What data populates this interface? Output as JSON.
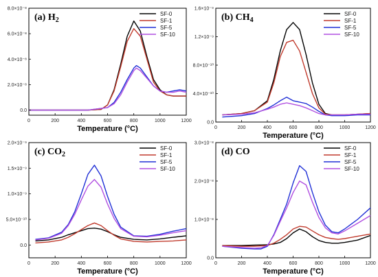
{
  "chart_data": [
    {
      "type": "line",
      "panel_label": "(a)",
      "title": "H",
      "title_sub": "2",
      "xlabel": "Temperature (°C)",
      "xlim": [
        0,
        1200
      ],
      "xticks": [
        "0",
        "200",
        "400",
        "600",
        "800",
        "1000",
        "1200"
      ],
      "ylim": [
        -4e-09,
        8e-08
      ],
      "yticks": [
        {
          "v": 0.0,
          "label": "0.0"
        },
        {
          "v": 2e-08,
          "label": "2.0×10⁻⁸"
        },
        {
          "v": 4e-08,
          "label": "4.0×10⁻⁸"
        },
        {
          "v": 6e-08,
          "label": "6.0×10⁻⁸"
        },
        {
          "v": 8e-08,
          "label": "8.0×10⁻⁸"
        }
      ],
      "series": [
        {
          "name": "SF-0",
          "color": "#000000",
          "x": [
            0,
            450,
            550,
            600,
            650,
            700,
            750,
            800,
            850,
            900,
            950,
            1000,
            1050,
            1100,
            1200
          ],
          "y": [
            0,
            0,
            5e-10,
            4e-09,
            1.6e-08,
            3.6e-08,
            5.8e-08,
            7e-08,
            6.2e-08,
            4.2e-08,
            2.4e-08,
            1.6e-08,
            1.2e-08,
            1.1e-08,
            1.1e-08
          ]
        },
        {
          "name": "SF-1",
          "color": "#c0392b",
          "x": [
            0,
            450,
            550,
            600,
            650,
            700,
            750,
            800,
            850,
            900,
            950,
            1000,
            1050,
            1100,
            1200
          ],
          "y": [
            0,
            0,
            5e-10,
            4e-09,
            1.5e-08,
            3.4e-08,
            5.4e-08,
            6.4e-08,
            5.8e-08,
            4e-08,
            2.2e-08,
            1.5e-08,
            1.2e-08,
            1.1e-08,
            1.1e-08
          ]
        },
        {
          "name": "SF-5",
          "color": "#1f2fd6",
          "x": [
            0,
            450,
            600,
            650,
            700,
            750,
            800,
            820,
            850,
            900,
            950,
            1000,
            1050,
            1100,
            1150,
            1200
          ],
          "y": [
            0,
            0,
            2e-09,
            6e-09,
            1.4e-08,
            2.4e-08,
            3.3e-08,
            3.5e-08,
            3.3e-08,
            2.6e-08,
            1.9e-08,
            1.5e-08,
            1.4e-08,
            1.5e-08,
            1.6e-08,
            1.5e-08
          ]
        },
        {
          "name": "SF-10",
          "color": "#b04ee0",
          "x": [
            0,
            450,
            600,
            650,
            700,
            750,
            800,
            820,
            850,
            900,
            950,
            1000,
            1050,
            1100,
            1150,
            1200
          ],
          "y": [
            0,
            0,
            2e-09,
            5e-09,
            1.2e-08,
            2.2e-08,
            3.1e-08,
            3.3e-08,
            3.1e-08,
            2.5e-08,
            1.9e-08,
            1.5e-08,
            1.4e-08,
            1.4e-08,
            1.5e-08,
            1.4e-08
          ]
        }
      ],
      "legend": "top-right"
    },
    {
      "type": "line",
      "panel_label": "(b)",
      "title": "CH",
      "title_sub": "4",
      "xlabel": "Temperature (°C)",
      "xlim": [
        0,
        1200
      ],
      "xticks": [
        "0",
        "200",
        "400",
        "600",
        "800",
        "1000",
        "1200"
      ],
      "ylim": [
        0,
        1.6e-09
      ],
      "yticks": [
        {
          "v": 0.0,
          "label": "0.0"
        },
        {
          "v": 4e-10,
          "label": "4.0×10⁻¹⁰"
        },
        {
          "v": 8e-10,
          "label": "8.0×10⁻¹⁰"
        },
        {
          "v": 1.2e-09,
          "label": "1.2×10⁻⁹"
        },
        {
          "v": 1.6e-09,
          "label": "1.6×10⁻⁹"
        }
      ],
      "series": [
        {
          "name": "SF-0",
          "color": "#000000",
          "x": [
            50,
            200,
            300,
            400,
            450,
            500,
            550,
            600,
            650,
            700,
            750,
            800,
            850,
            900,
            1000,
            1100,
            1200
          ],
          "y": [
            1e-10,
            1.2e-10,
            1.6e-10,
            3e-10,
            6e-10,
            1e-09,
            1.3e-09,
            1.4e-09,
            1.3e-09,
            9.5e-10,
            5.5e-10,
            2.5e-10,
            1.2e-10,
            1e-10,
            1e-10,
            1.1e-10,
            1.2e-10
          ]
        },
        {
          "name": "SF-1",
          "color": "#c0392b",
          "x": [
            50,
            200,
            300,
            400,
            450,
            500,
            550,
            600,
            650,
            700,
            750,
            800,
            850,
            900,
            1000,
            1100,
            1200
          ],
          "y": [
            1e-10,
            1.2e-10,
            1.6e-10,
            2.8e-10,
            5.5e-10,
            9.2e-10,
            1.12e-09,
            1.15e-09,
            1e-09,
            7e-10,
            4e-10,
            2e-10,
            1.1e-10,
            1e-10,
            1e-10,
            1.1e-10,
            1.2e-10
          ]
        },
        {
          "name": "SF-5",
          "color": "#1f2fd6",
          "x": [
            50,
            200,
            300,
            400,
            450,
            500,
            550,
            600,
            650,
            700,
            750,
            800,
            850,
            900,
            1000,
            1100,
            1200
          ],
          "y": [
            7e-11,
            9e-11,
            1.2e-10,
            1.9e-10,
            2.4e-10,
            3e-10,
            3.5e-10,
            3e-10,
            2.8e-10,
            2.6e-10,
            2.1e-10,
            1.5e-10,
            1e-10,
            9e-11,
            9e-11,
            1e-10,
            1e-10
          ]
        },
        {
          "name": "SF-10",
          "color": "#b04ee0",
          "x": [
            50,
            200,
            300,
            400,
            450,
            500,
            550,
            600,
            650,
            700,
            750,
            800,
            850,
            900,
            1000,
            1100,
            1200
          ],
          "y": [
            1e-10,
            1.1e-10,
            1.3e-10,
            1.8e-10,
            2.1e-10,
            2.5e-10,
            2.7e-10,
            2.5e-10,
            2.3e-10,
            2e-10,
            1.6e-10,
            1.2e-10,
            1e-10,
            1e-10,
            1e-10,
            1.1e-10,
            1.1e-10
          ]
        }
      ],
      "legend": "top-right"
    },
    {
      "type": "line",
      "panel_label": "(c)",
      "title": "CO",
      "title_sub": "2",
      "xlabel": "Temperature (°C)",
      "xlim": [
        0,
        1200
      ],
      "xticks": [
        "0",
        "200",
        "400",
        "600",
        "800",
        "1000",
        "1200"
      ],
      "ylim": [
        -2.5e-10,
        2e-09
      ],
      "yticks": [
        {
          "v": 0.0,
          "label": "0.0"
        },
        {
          "v": 5e-10,
          "label": "5.0×10⁻¹⁰"
        },
        {
          "v": 1e-09,
          "label": "1.0×10⁻⁹"
        },
        {
          "v": 1.5e-09,
          "label": "1.5×10⁻⁹"
        },
        {
          "v": 2e-09,
          "label": "2.0×10⁻⁹"
        }
      ],
      "series": [
        {
          "name": "SF-0",
          "color": "#000000",
          "x": [
            50,
            150,
            250,
            300,
            350,
            400,
            450,
            500,
            550,
            600,
            650,
            700,
            800,
            900,
            1000,
            1100,
            1200
          ],
          "y": [
            8e-11,
            1e-10,
            1.5e-10,
            2e-10,
            2.4e-10,
            2.8e-10,
            3.2e-10,
            3.3e-10,
            3.1e-10,
            2.6e-10,
            2e-10,
            1.5e-10,
            1.1e-10,
            1e-10,
            1.2e-10,
            1.5e-10,
            1.8e-10
          ]
        },
        {
          "name": "SF-1",
          "color": "#c0392b",
          "x": [
            50,
            150,
            250,
            300,
            350,
            400,
            450,
            500,
            550,
            600,
            650,
            700,
            800,
            900,
            1000,
            1100,
            1200
          ],
          "y": [
            4e-11,
            6e-11,
            1e-10,
            1.5e-10,
            2.2e-10,
            3e-10,
            3.8e-10,
            4.3e-10,
            3.8e-10,
            2.8e-10,
            1.9e-10,
            1.2e-10,
            7e-11,
            6e-11,
            7e-11,
            8e-11,
            1e-10
          ]
        },
        {
          "name": "SF-5",
          "color": "#1f2fd6",
          "x": [
            50,
            150,
            250,
            300,
            350,
            400,
            450,
            500,
            550,
            600,
            650,
            700,
            800,
            900,
            1000,
            1100,
            1200
          ],
          "y": [
            1.1e-10,
            1.4e-10,
            2.5e-10,
            4e-10,
            6.5e-10,
            1e-09,
            1.38e-09,
            1.56e-09,
            1.35e-09,
            9.5e-10,
            6e-10,
            3.5e-10,
            1.8e-10,
            1.7e-10,
            2.1e-10,
            2.7e-10,
            3.2e-10
          ]
        },
        {
          "name": "SF-10",
          "color": "#b04ee0",
          "x": [
            50,
            150,
            250,
            300,
            350,
            400,
            450,
            500,
            550,
            600,
            650,
            700,
            800,
            900,
            1000,
            1100,
            1200
          ],
          "y": [
            1e-10,
            1.3e-10,
            2.3e-10,
            3.8e-10,
            6e-10,
            8.8e-10,
            1.15e-09,
            1.28e-09,
            1.13e-09,
            8e-10,
            5.2e-10,
            3.2e-10,
            1.7e-10,
            1.6e-10,
            1.9e-10,
            2.4e-10,
            2.8e-10
          ]
        }
      ],
      "legend": "top-right"
    },
    {
      "type": "line",
      "panel_label": "(d)",
      "title": "CO",
      "title_sub": "",
      "xlabel": "Temperature (°C)",
      "xlim": [
        0,
        1200
      ],
      "xticks": [
        "0",
        "200",
        "400",
        "600",
        "800",
        "1000",
        "1200"
      ],
      "ylim": [
        0,
        3e-08
      ],
      "yticks": [
        {
          "v": 0.0,
          "label": "0.0"
        },
        {
          "v": 1e-08,
          "label": "1.0×10⁻⁸"
        },
        {
          "v": 2e-08,
          "label": "2.0×10⁻⁸"
        },
        {
          "v": 3e-08,
          "label": "3.0×10⁻⁸"
        }
      ],
      "series": [
        {
          "name": "SF-0",
          "color": "#000000",
          "x": [
            50,
            200,
            300,
            400,
            450,
            500,
            550,
            600,
            650,
            700,
            750,
            800,
            850,
            900,
            950,
            1000,
            1100,
            1200
          ],
          "y": [
            3.2e-09,
            3.2e-09,
            3.3e-09,
            3.4e-09,
            3.6e-09,
            4e-09,
            5e-09,
            6.5e-09,
            7.5e-09,
            6.8e-09,
            5.5e-09,
            4.5e-09,
            4e-09,
            3.8e-09,
            3.8e-09,
            4e-09,
            4.6e-09,
            5.8e-09
          ]
        },
        {
          "name": "SF-1",
          "color": "#c0392b",
          "x": [
            50,
            200,
            300,
            400,
            450,
            500,
            550,
            600,
            650,
            700,
            750,
            800,
            850,
            900,
            950,
            1000,
            1100,
            1200
          ],
          "y": [
            3.2e-09,
            3e-09,
            3e-09,
            3.2e-09,
            3.8e-09,
            4.8e-09,
            6e-09,
            7.5e-09,
            8.2e-09,
            8e-09,
            7e-09,
            6e-09,
            5.3e-09,
            5e-09,
            4.8e-09,
            5e-09,
            5.6e-09,
            6.2e-09
          ]
        },
        {
          "name": "SF-5",
          "color": "#1f2fd6",
          "x": [
            50,
            200,
            300,
            350,
            400,
            450,
            500,
            550,
            600,
            650,
            700,
            750,
            800,
            850,
            900,
            950,
            1000,
            1100,
            1200
          ],
          "y": [
            3e-09,
            2.5e-09,
            2.3e-09,
            2.3e-09,
            3e-09,
            6e-09,
            1e-08,
            1.4e-08,
            1.95e-08,
            2.4e-08,
            2.25e-08,
            1.7e-08,
            1.2e-08,
            8.5e-09,
            6.8e-09,
            6.5e-09,
            7.5e-09,
            1e-08,
            1.3e-08
          ]
        },
        {
          "name": "SF-10",
          "color": "#b04ee0",
          "x": [
            50,
            200,
            300,
            350,
            400,
            450,
            500,
            550,
            600,
            650,
            700,
            750,
            800,
            850,
            900,
            950,
            1000,
            1100,
            1200
          ],
          "y": [
            3e-09,
            2.7e-09,
            2.5e-09,
            2.6e-09,
            3.2e-09,
            5.8e-09,
            9.5e-09,
            1.3e-08,
            1.7e-08,
            2e-08,
            1.9e-08,
            1.45e-08,
            1.05e-08,
            7.8e-09,
            6.5e-09,
            6.2e-09,
            7e-09,
            9e-09,
            1.1e-08
          ]
        }
      ],
      "legend": "top-right"
    }
  ]
}
